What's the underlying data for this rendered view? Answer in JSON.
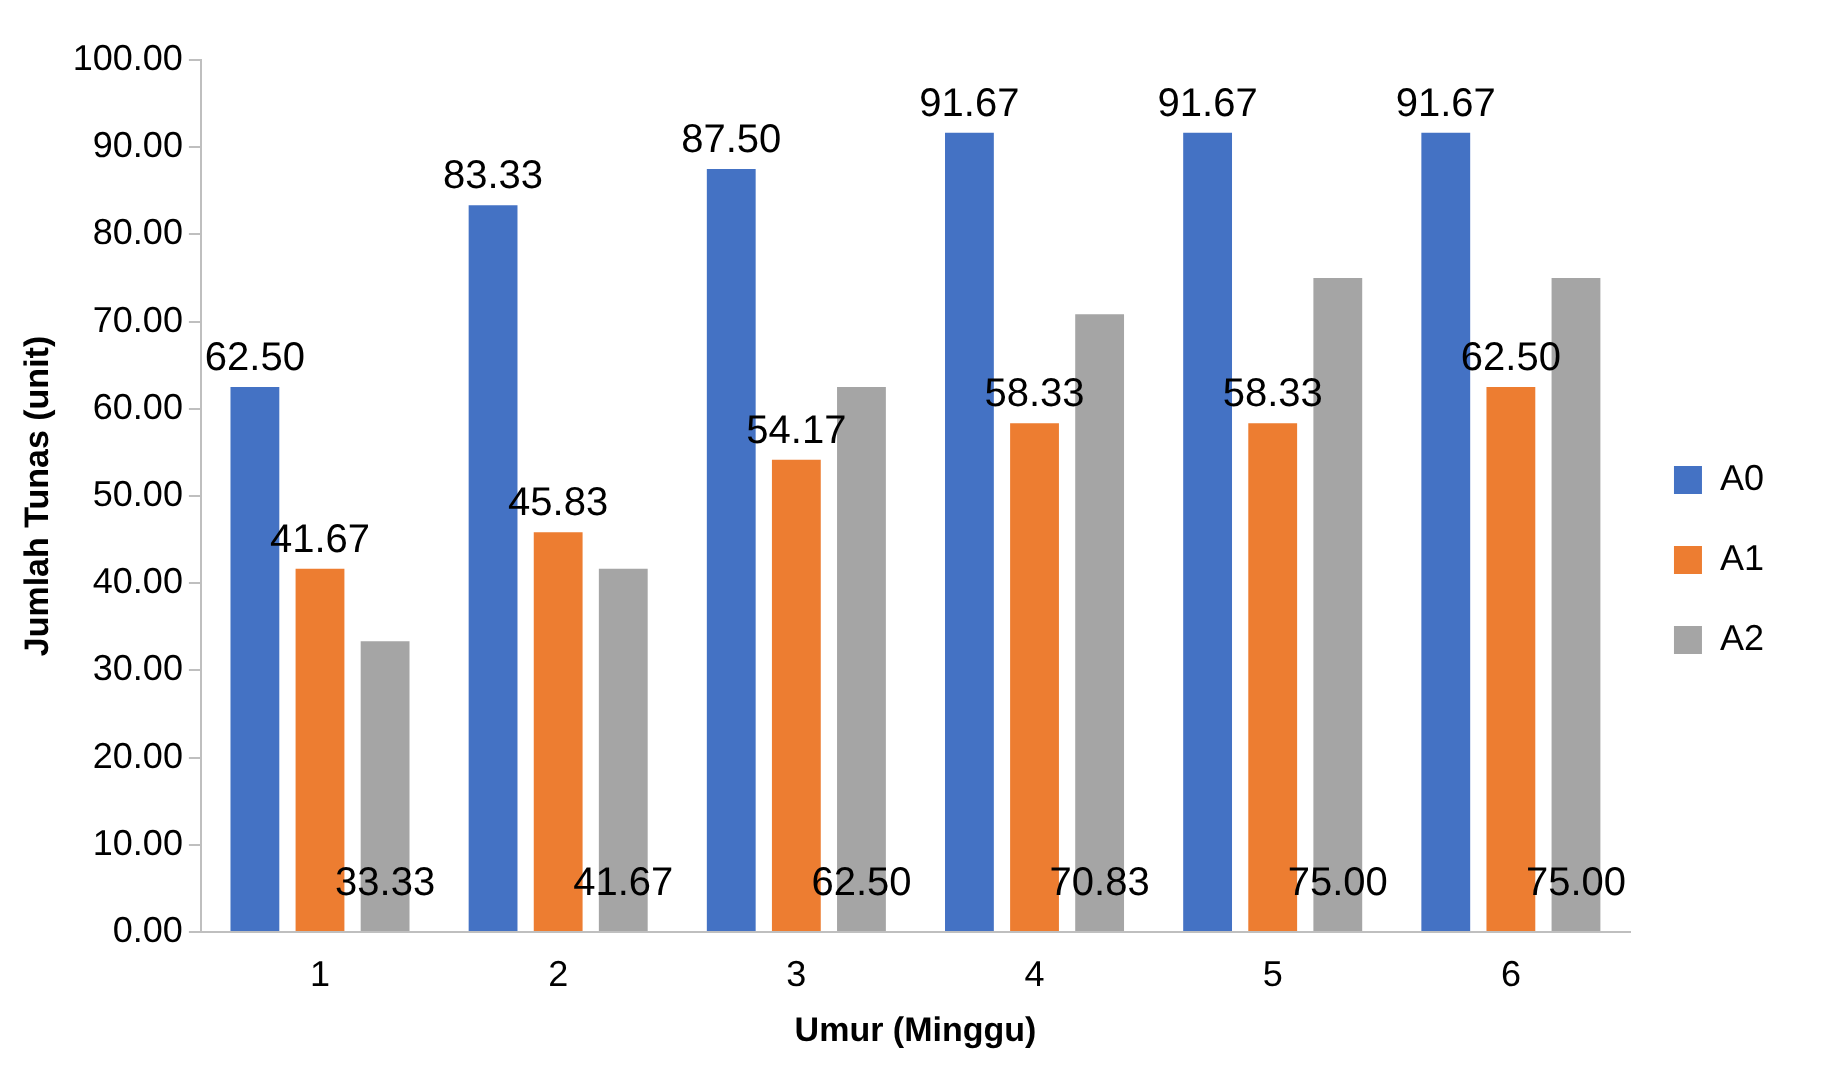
{
  "chart_data": {
    "type": "bar",
    "xlabel": "Umur (Minggu)",
    "ylabel": "Jumlah Tunas (unit)",
    "categories": [
      "1",
      "2",
      "3",
      "4",
      "5",
      "6"
    ],
    "series": [
      {
        "name": "A0",
        "color": "#4472c4",
        "values": [
          62.5,
          83.33,
          87.5,
          91.67,
          91.67,
          91.67
        ],
        "value_labels": [
          "62.50",
          "83.33",
          "87.50",
          "91.67",
          "91.67",
          "91.67"
        ]
      },
      {
        "name": "A1",
        "color": "#ed7d31",
        "values": [
          41.67,
          45.83,
          54.17,
          58.33,
          58.33,
          62.5
        ],
        "value_labels": [
          "41.67",
          "45.83",
          "54.17",
          "58.33",
          "58.33",
          "62.50"
        ]
      },
      {
        "name": "A2",
        "color": "#a5a5a5",
        "values": [
          33.33,
          41.67,
          62.5,
          70.83,
          75.0,
          75.0
        ],
        "value_labels": [
          "33.33",
          "41.67",
          "62.50",
          "70.83",
          "75.00",
          "75.00"
        ]
      }
    ],
    "ylim": [
      0,
      100
    ],
    "yticks": [
      {
        "value": 0,
        "label": "0.00"
      },
      {
        "value": 10,
        "label": "10.00"
      },
      {
        "value": 20,
        "label": "20.00"
      },
      {
        "value": 30,
        "label": "30.00"
      },
      {
        "value": 40,
        "label": "40.00"
      },
      {
        "value": 50,
        "label": "50.00"
      },
      {
        "value": 60,
        "label": "60.00"
      },
      {
        "value": 70,
        "label": "70.00"
      },
      {
        "value": 80,
        "label": "80.00"
      },
      {
        "value": 90,
        "label": "90.00"
      },
      {
        "value": 100,
        "label": "100.00"
      }
    ],
    "grid": false,
    "legend": "right"
  }
}
